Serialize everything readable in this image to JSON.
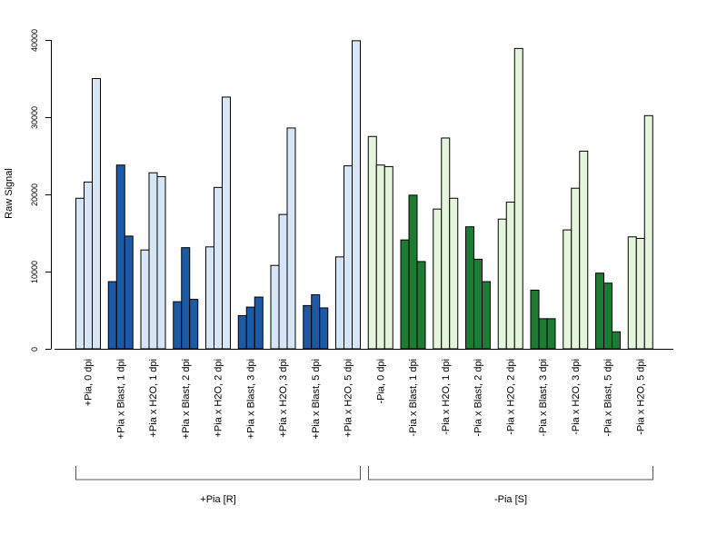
{
  "chart_data": {
    "type": "bar",
    "ylabel": "Raw Signal",
    "xlabel": "",
    "title": "",
    "ylim": [
      0,
      40000
    ],
    "yticks": [
      0,
      10000,
      20000,
      30000,
      40000
    ],
    "ytick_labels": [
      "0",
      "10000",
      "20000",
      "30000",
      "40000"
    ],
    "grid": false,
    "bars_per_group": 3,
    "colors": {
      "plus_light": "#d6e6f6",
      "plus_dark": "#1c5aa6",
      "minus_light": "#e5f5dc",
      "minus_dark": "#1f7a33",
      "bar_border": "#000000"
    },
    "categories": [
      {
        "label": "+Pia, 0 dpi",
        "values": [
          19500,
          21600,
          35000
        ],
        "style": "plus_light"
      },
      {
        "label": "+Pia x Blast, 1 dpi",
        "values": [
          8700,
          23800,
          14600
        ],
        "style": "plus_dark"
      },
      {
        "label": "+Pia x H2O, 1 dpi",
        "values": [
          12800,
          22800,
          22300
        ],
        "style": "plus_light"
      },
      {
        "label": "+Pia x Blast, 2 dpi",
        "values": [
          6100,
          13100,
          6400
        ],
        "style": "plus_dark"
      },
      {
        "label": "+Pia x H2O, 2 dpi",
        "values": [
          13200,
          20900,
          32600
        ],
        "style": "plus_light"
      },
      {
        "label": "+Pia x Blast, 3 dpi",
        "values": [
          4300,
          5400,
          6700
        ],
        "style": "plus_dark"
      },
      {
        "label": "+Pia x H2O, 3 dpi",
        "values": [
          10800,
          17400,
          28600
        ],
        "style": "plus_light"
      },
      {
        "label": "+Pia x Blast, 5 dpi",
        "values": [
          5600,
          7000,
          5300
        ],
        "style": "plus_dark"
      },
      {
        "label": "+Pia x H2O, 5 dpi",
        "values": [
          11900,
          23700,
          39900
        ],
        "style": "plus_light"
      },
      {
        "label": "-Pia, 0 dpi",
        "values": [
          27500,
          23800,
          23600
        ],
        "style": "minus_light"
      },
      {
        "label": "-Pia x Blast, 1 dpi",
        "values": [
          14100,
          19900,
          11300
        ],
        "style": "minus_dark"
      },
      {
        "label": "-Pia x H2O, 1 dpi",
        "values": [
          18100,
          27300,
          19500
        ],
        "style": "minus_light"
      },
      {
        "label": "-Pia x Blast, 2 dpi",
        "values": [
          15800,
          11600,
          8700
        ],
        "style": "minus_dark"
      },
      {
        "label": "-Pia x H2O, 2 dpi",
        "values": [
          16800,
          19000,
          38900
        ],
        "style": "minus_light"
      },
      {
        "label": "-Pia x Blast, 3 dpi",
        "values": [
          7600,
          3900,
          3900
        ],
        "style": "minus_dark"
      },
      {
        "label": "-Pia x H2O, 3 dpi",
        "values": [
          15400,
          20800,
          25600
        ],
        "style": "minus_light"
      },
      {
        "label": "-Pia x Blast, 5 dpi",
        "values": [
          9800,
          8500,
          2200
        ],
        "style": "minus_dark"
      },
      {
        "label": "-Pia x H2O, 5 dpi",
        "values": [
          14500,
          14300,
          30200
        ],
        "style": "minus_light"
      }
    ],
    "groups": [
      {
        "label": "+Pia [R]",
        "first": 0,
        "last": 8
      },
      {
        "label": "-Pia [S]",
        "first": 9,
        "last": 17
      }
    ]
  }
}
